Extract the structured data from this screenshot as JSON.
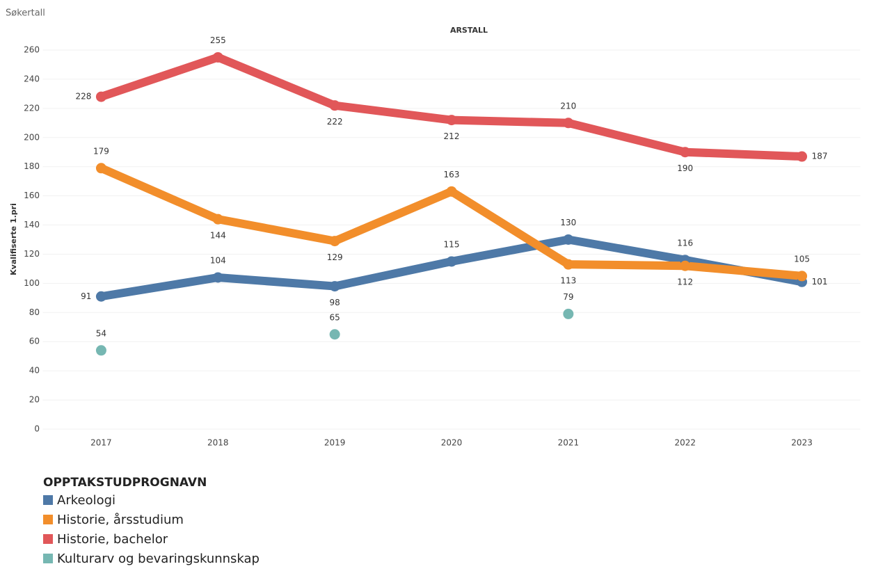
{
  "chart_data": {
    "type": "line",
    "title": "Søkertall",
    "x_label": "ARSTALL",
    "y_label": "Kvalifiserte 1.pri",
    "legend_title": "OPPTAKSTUDPROGNAVN",
    "categories": [
      "2017",
      "2018",
      "2019",
      "2020",
      "2021",
      "2022",
      "2023"
    ],
    "series": [
      {
        "name": "Arkeologi",
        "color": "#4e79a7",
        "values": [
          91,
          104,
          98,
          115,
          130,
          116,
          101
        ]
      },
      {
        "name": "Historie, årsstudium",
        "color": "#f28e2b",
        "values": [
          179,
          144,
          129,
          163,
          113,
          112,
          105
        ]
      },
      {
        "name": "Historie, bachelor",
        "color": "#e15759",
        "values": [
          228,
          255,
          222,
          212,
          210,
          190,
          187
        ]
      },
      {
        "name": "Kulturarv og bevaringskunnskap",
        "color": "#76b7b2",
        "values": [
          54,
          null,
          65,
          null,
          79,
          null,
          null
        ]
      }
    ],
    "ylim": [
      0,
      260
    ],
    "yticks": [
      0,
      20,
      40,
      60,
      80,
      100,
      120,
      140,
      160,
      180,
      200,
      220,
      240,
      260
    ],
    "grid": true
  }
}
